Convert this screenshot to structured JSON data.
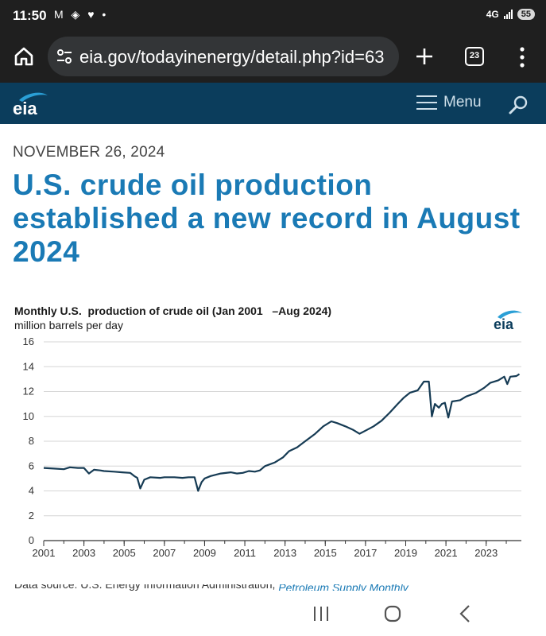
{
  "status_bar": {
    "time": "11:50",
    "left_icons": "M ◈ ♥ •",
    "network": "4G",
    "battery": "55"
  },
  "browser": {
    "url": "eia.gov/todayinenergy/detail.php?id=63",
    "tab_count": "23",
    "icons": [
      "home-icon",
      "tune-icon",
      "plus-icon",
      "tabs-icon",
      "more-vert-icon"
    ]
  },
  "site_header": {
    "logo": "eia",
    "menu_label": "Menu"
  },
  "article": {
    "date": "NOVEMBER 26, 2024",
    "title": "U.S. crude oil production established a new record in August 2024"
  },
  "chart_data": {
    "type": "line",
    "title": "Monthly U.S.  production of crude oil (Jan 2001   –Aug 2024)",
    "ylabel": "million barrels per day",
    "xlabel": "",
    "ylim": [
      0,
      16
    ],
    "xlim": [
      2001.0,
      2024.75
    ],
    "yticks": [
      "0",
      "2",
      "4",
      "6",
      "8",
      "10",
      "12",
      "14",
      "16"
    ],
    "xticks": [
      "2001",
      "2003",
      "2005",
      "2007",
      "2009",
      "2011",
      "2013",
      "2015",
      "2017",
      "2019",
      "2021",
      "2023"
    ],
    "grid": true,
    "color": "#163b54",
    "series": [
      {
        "points": [
          [
            2001.0,
            5.85
          ],
          [
            2001.5,
            5.8
          ],
          [
            2002.0,
            5.75
          ],
          [
            2002.3,
            5.9
          ],
          [
            2002.7,
            5.85
          ],
          [
            2003.0,
            5.85
          ],
          [
            2003.25,
            5.4
          ],
          [
            2003.5,
            5.7
          ],
          [
            2003.8,
            5.65
          ],
          [
            2004.0,
            5.6
          ],
          [
            2004.5,
            5.55
          ],
          [
            2004.9,
            5.5
          ],
          [
            2005.3,
            5.45
          ],
          [
            2005.5,
            5.2
          ],
          [
            2005.65,
            5.05
          ],
          [
            2005.8,
            4.2
          ],
          [
            2006.0,
            4.9
          ],
          [
            2006.3,
            5.1
          ],
          [
            2006.8,
            5.05
          ],
          [
            2007.0,
            5.1
          ],
          [
            2007.5,
            5.1
          ],
          [
            2007.9,
            5.05
          ],
          [
            2008.2,
            5.1
          ],
          [
            2008.5,
            5.1
          ],
          [
            2008.68,
            4.0
          ],
          [
            2008.85,
            4.7
          ],
          [
            2009.0,
            5.0
          ],
          [
            2009.3,
            5.2
          ],
          [
            2009.8,
            5.4
          ],
          [
            2010.3,
            5.5
          ],
          [
            2010.6,
            5.4
          ],
          [
            2010.9,
            5.45
          ],
          [
            2011.2,
            5.6
          ],
          [
            2011.5,
            5.55
          ],
          [
            2011.75,
            5.65
          ],
          [
            2012.0,
            6.0
          ],
          [
            2012.5,
            6.3
          ],
          [
            2012.9,
            6.7
          ],
          [
            2013.2,
            7.2
          ],
          [
            2013.6,
            7.5
          ],
          [
            2014.0,
            8.0
          ],
          [
            2014.5,
            8.6
          ],
          [
            2014.9,
            9.2
          ],
          [
            2015.3,
            9.6
          ],
          [
            2015.6,
            9.45
          ],
          [
            2016.0,
            9.2
          ],
          [
            2016.4,
            8.9
          ],
          [
            2016.7,
            8.6
          ],
          [
            2017.0,
            8.85
          ],
          [
            2017.4,
            9.2
          ],
          [
            2017.8,
            9.65
          ],
          [
            2018.2,
            10.3
          ],
          [
            2018.6,
            11.0
          ],
          [
            2018.9,
            11.5
          ],
          [
            2019.2,
            11.9
          ],
          [
            2019.6,
            12.1
          ],
          [
            2019.9,
            12.8
          ],
          [
            2020.15,
            12.8
          ],
          [
            2020.3,
            10.0
          ],
          [
            2020.45,
            11.0
          ],
          [
            2020.65,
            10.7
          ],
          [
            2020.8,
            11.0
          ],
          [
            2020.95,
            11.1
          ],
          [
            2021.12,
            9.9
          ],
          [
            2021.3,
            11.2
          ],
          [
            2021.7,
            11.3
          ],
          [
            2022.0,
            11.6
          ],
          [
            2022.5,
            11.9
          ],
          [
            2022.9,
            12.3
          ],
          [
            2023.2,
            12.7
          ],
          [
            2023.6,
            12.9
          ],
          [
            2023.9,
            13.2
          ],
          [
            2024.05,
            12.6
          ],
          [
            2024.2,
            13.2
          ],
          [
            2024.5,
            13.25
          ],
          [
            2024.65,
            13.4
          ]
        ]
      }
    ]
  },
  "source_peek": {
    "prefix": "Data source: U.S. Energy Information Administration, ",
    "link": "Petroleum Supply Monthly"
  },
  "nav_bar": {
    "icons": [
      "recents-icon",
      "home-circle-icon",
      "back-icon"
    ]
  }
}
